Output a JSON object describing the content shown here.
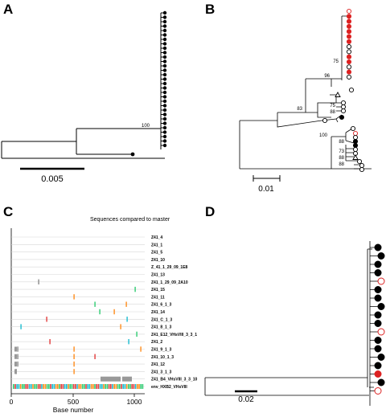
{
  "panels": {
    "A": {
      "label": "A",
      "bootstrap": "100",
      "scale_label": "0.005",
      "tip_markers": "filled-black-circles"
    },
    "B": {
      "label": "B",
      "bootstrap": [
        "75",
        "96",
        "83",
        "75",
        "88",
        "100",
        "88",
        "73",
        "88",
        "88"
      ],
      "scale_label": "0.01",
      "marker_colors": {
        "red_open": "#dd2222",
        "red_filled": "#dd2222",
        "black_filled": "#000000",
        "open": "#000000"
      }
    },
    "C": {
      "label": "C",
      "title": "Sequences compared to master",
      "x_label": "Base number",
      "x_ticks": [
        "0",
        "500",
        "1000"
      ],
      "sequences": [
        "Z41_4",
        "Z41_1",
        "Z41_5",
        "Z41_10",
        "Z_41_1_29_09_1E8",
        "Z41_13",
        "Z41_1_29_09_2A10",
        "Z41_15",
        "Z41_11",
        "Z41_6_1_3",
        "Z41_14",
        "Z41_C_1_3",
        "Z41_8_1_3",
        "Z41_E12_VHsVIII_3_3_1",
        "Z41_2",
        "Z41_9_1_3",
        "Z41_10_1_3",
        "Z41_12",
        "Z41_3_1_3",
        "Z41_B4_VHsVIII_3_3_10",
        "env_HXB2_VHsVIII"
      ]
    },
    "D": {
      "label": "D",
      "scale_label": "0.02",
      "marker_colors": {
        "black_filled": "#000000",
        "red_open": "#dd2222",
        "red_filled": "#dd2222"
      }
    }
  }
}
